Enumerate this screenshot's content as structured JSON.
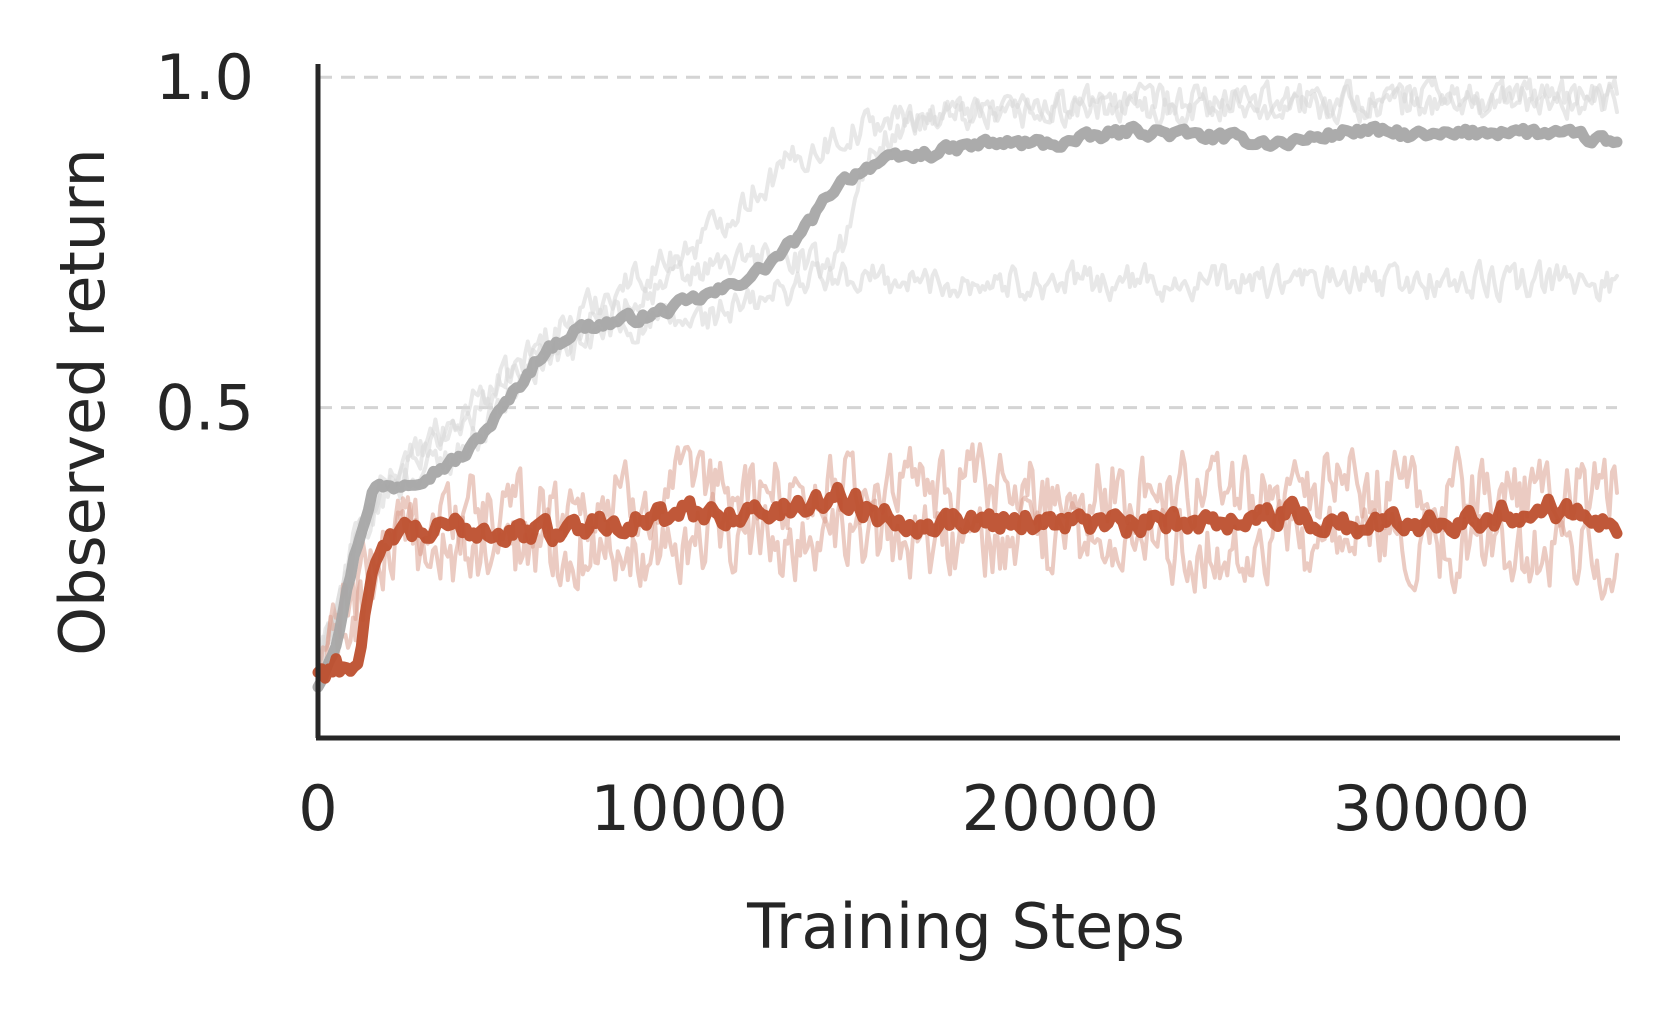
{
  "chart_data": {
    "type": "line",
    "title": "",
    "xlabel": "Training Steps",
    "ylabel": "Observed return",
    "xlim": [
      0,
      35000
    ],
    "ylim": [
      0.0,
      1.02
    ],
    "x_ticks": [
      0,
      10000,
      20000,
      30000
    ],
    "x_tick_labels": [
      "0",
      "10000",
      "20000",
      "30000"
    ],
    "y_ticks": [
      0.5,
      1.0
    ],
    "y_tick_labels": [
      "0.5",
      "1.0"
    ],
    "grid": "y-dashed",
    "legend": "none",
    "colors": {
      "gray_mean": "#a6a6a6",
      "gray_runs": "#d9d9d9",
      "orange_mean": "#bd4f2e",
      "orange_runs": "#dba08f"
    },
    "series": [
      {
        "color": "gray",
        "style": "mean",
        "x": [
          0,
          500,
          1000,
          1500,
          2000,
          3000,
          4000,
          5000,
          6000,
          7000,
          8000,
          9000,
          10000,
          11000,
          12000,
          13000,
          14000,
          15000,
          16000,
          17000,
          18000,
          20000,
          22000,
          24000,
          26000,
          28000,
          30000,
          32000,
          34000,
          35000
        ],
        "y": [
          0.08,
          0.15,
          0.28,
          0.38,
          0.38,
          0.4,
          0.43,
          0.5,
          0.58,
          0.62,
          0.63,
          0.64,
          0.66,
          0.68,
          0.71,
          0.76,
          0.84,
          0.87,
          0.88,
          0.89,
          0.9,
          0.9,
          0.92,
          0.91,
          0.9,
          0.92,
          0.91,
          0.92,
          0.91,
          0.9
        ]
      },
      {
        "color": "gray",
        "style": "run",
        "x": [
          0,
          1000,
          2000,
          4000,
          6000,
          8000,
          10000,
          12000,
          13000,
          14000,
          15000,
          16000,
          18000,
          20000,
          25000,
          30000,
          35000
        ],
        "y": [
          0.1,
          0.3,
          0.4,
          0.48,
          0.6,
          0.68,
          0.74,
          0.84,
          0.88,
          0.91,
          0.93,
          0.94,
          0.95,
          0.96,
          0.96,
          0.96,
          0.97
        ]
      },
      {
        "color": "gray",
        "style": "run",
        "x": [
          0,
          1000,
          2000,
          4000,
          6000,
          8000,
          10000,
          12000,
          14000,
          15000,
          16000,
          18000,
          20000,
          25000,
          30000,
          35000
        ],
        "y": [
          0.1,
          0.3,
          0.38,
          0.44,
          0.57,
          0.62,
          0.63,
          0.66,
          0.72,
          0.9,
          0.93,
          0.94,
          0.95,
          0.96,
          0.97,
          0.97
        ]
      },
      {
        "color": "gray",
        "style": "run",
        "x": [
          0,
          1000,
          2000,
          4000,
          6000,
          8000,
          10000,
          12000,
          13000,
          14000,
          16000,
          20000,
          25000,
          30000,
          35000
        ],
        "y": [
          0.1,
          0.28,
          0.4,
          0.5,
          0.58,
          0.65,
          0.7,
          0.73,
          0.72,
          0.7,
          0.69,
          0.69,
          0.69,
          0.69,
          0.69
        ]
      },
      {
        "color": "orange",
        "style": "mean",
        "x": [
          0,
          500,
          1000,
          1500,
          2000,
          3000,
          4000,
          5000,
          6000,
          7000,
          8000,
          9000,
          10000,
          11000,
          12000,
          13000,
          14000,
          15000,
          16000,
          17000,
          18000,
          20000,
          22000,
          24000,
          26000,
          28000,
          30000,
          32000,
          34000,
          35000
        ],
        "y": [
          0.1,
          0.11,
          0.11,
          0.24,
          0.31,
          0.31,
          0.32,
          0.31,
          0.31,
          0.32,
          0.33,
          0.33,
          0.34,
          0.34,
          0.34,
          0.35,
          0.37,
          0.34,
          0.33,
          0.33,
          0.33,
          0.33,
          0.32,
          0.33,
          0.34,
          0.32,
          0.33,
          0.34,
          0.35,
          0.33
        ]
      },
      {
        "color": "orange",
        "style": "run",
        "x": [
          0,
          2000,
          5000,
          10000,
          15000,
          20000,
          25000,
          30000,
          35000
        ],
        "y": [
          0.1,
          0.33,
          0.34,
          0.37,
          0.38,
          0.37,
          0.38,
          0.37,
          0.37
        ]
      },
      {
        "color": "orange",
        "style": "run",
        "x": [
          0,
          2000,
          5000,
          10000,
          15000,
          20000,
          25000,
          30000,
          35000
        ],
        "y": [
          0.1,
          0.28,
          0.28,
          0.3,
          0.3,
          0.29,
          0.29,
          0.29,
          0.28
        ]
      }
    ]
  }
}
